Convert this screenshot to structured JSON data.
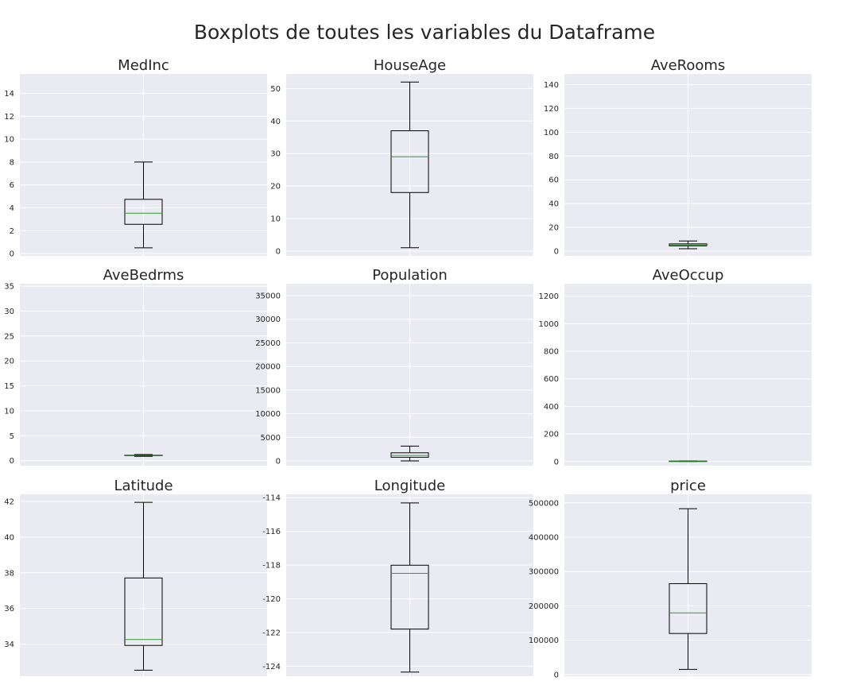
{
  "figure": {
    "title": "Boxplots de toutes les variables du Dataframe"
  },
  "colors": {
    "axes_bg": "#eaeaf2",
    "grid": "#ffffff",
    "box": "#000000",
    "median": "#2ca02c",
    "text": "#262626"
  },
  "chart_data": [
    {
      "type": "box",
      "title": "MedInc",
      "ylim": [
        -0.2,
        15.7
      ],
      "yticks": [
        0,
        2,
        4,
        6,
        8,
        10,
        12,
        14
      ],
      "box": {
        "whislo": 0.5,
        "q1": 2.56,
        "med": 3.53,
        "q3": 4.74,
        "whishi": 8.0
      }
    },
    {
      "type": "box",
      "title": "HouseAge",
      "ylim": [
        -1.5,
        54.5
      ],
      "yticks": [
        0,
        10,
        20,
        30,
        40,
        50
      ],
      "box": {
        "whislo": 1,
        "q1": 18,
        "med": 29,
        "q3": 37,
        "whishi": 52
      }
    },
    {
      "type": "box",
      "title": "AveRooms",
      "ylim": [
        -4,
        149
      ],
      "yticks": [
        0,
        20,
        40,
        60,
        80,
        100,
        120,
        140
      ],
      "box": {
        "whislo": 2.0,
        "q1": 4.4,
        "med": 5.2,
        "q3": 6.1,
        "whishi": 8.5
      }
    },
    {
      "type": "box",
      "title": "AveBedrms",
      "ylim": [
        -1.0,
        35.5
      ],
      "yticks": [
        0,
        5,
        10,
        15,
        20,
        25,
        30,
        35
      ],
      "box": {
        "whislo": 0.87,
        "q1": 1.01,
        "med": 1.05,
        "q3": 1.1,
        "whishi": 1.24
      }
    },
    {
      "type": "box",
      "title": "Population",
      "ylim": [
        -1000,
        37500
      ],
      "yticks": [
        0,
        5000,
        10000,
        15000,
        20000,
        25000,
        30000,
        35000
      ],
      "box": {
        "whislo": 3,
        "q1": 787,
        "med": 1166,
        "q3": 1725,
        "whishi": 3132
      }
    },
    {
      "type": "box",
      "title": "AveOccup",
      "ylim": [
        -30,
        1290
      ],
      "yticks": [
        0,
        200,
        400,
        600,
        800,
        1000,
        1200
      ],
      "box": {
        "whislo": 1.16,
        "q1": 2.43,
        "med": 2.82,
        "q3": 3.28,
        "whishi": 4.56
      }
    },
    {
      "type": "box",
      "title": "Latitude",
      "ylim": [
        32.2,
        42.4
      ],
      "yticks": [
        34,
        36,
        38,
        40,
        42
      ],
      "box": {
        "whislo": 32.54,
        "q1": 33.93,
        "med": 34.26,
        "q3": 37.71,
        "whishi": 41.95
      }
    },
    {
      "type": "box",
      "title": "Longitude",
      "ylim": [
        -124.6,
        -113.8
      ],
      "yticks": [
        -124,
        -122,
        -120,
        -118,
        -116,
        -114
      ],
      "box": {
        "whislo": -124.35,
        "q1": -121.8,
        "med": -118.49,
        "q3": -118.01,
        "whishi": -114.31
      }
    },
    {
      "type": "box",
      "title": "price",
      "ylim": [
        -5000,
        525000
      ],
      "yticks": [
        0,
        100000,
        200000,
        300000,
        400000,
        500000
      ],
      "box": {
        "whislo": 15000,
        "q1": 119600,
        "med": 179700,
        "q3": 264725,
        "whishi": 483000
      }
    }
  ]
}
